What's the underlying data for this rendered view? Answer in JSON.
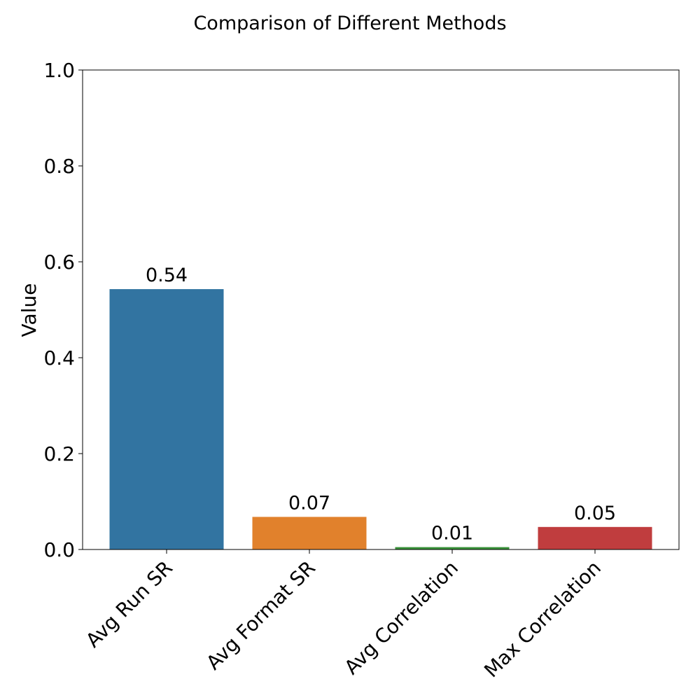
{
  "chart_data": {
    "type": "bar",
    "title": "Comparison of Different Methods",
    "xlabel": "",
    "ylabel": "Value",
    "categories": [
      "Avg Run SR",
      "Avg Format SR",
      "Avg Correlation",
      "Max Correlation"
    ],
    "values": [
      0.543,
      0.068,
      0.005,
      0.047
    ],
    "data_labels": [
      "0.54",
      "0.07",
      "0.01",
      "0.05"
    ],
    "colors": [
      "#3274a1",
      "#e1812c",
      "#3a923a",
      "#c03d3e"
    ],
    "ylim": [
      0,
      1.0
    ],
    "yticks": [
      0.0,
      0.2,
      0.4,
      0.6,
      0.8,
      1.0
    ],
    "ytick_labels": [
      "0.0",
      "0.2",
      "0.4",
      "0.6",
      "0.8",
      "1.0"
    ],
    "grid": false,
    "legend": "none",
    "xtick_rotation": 45
  }
}
